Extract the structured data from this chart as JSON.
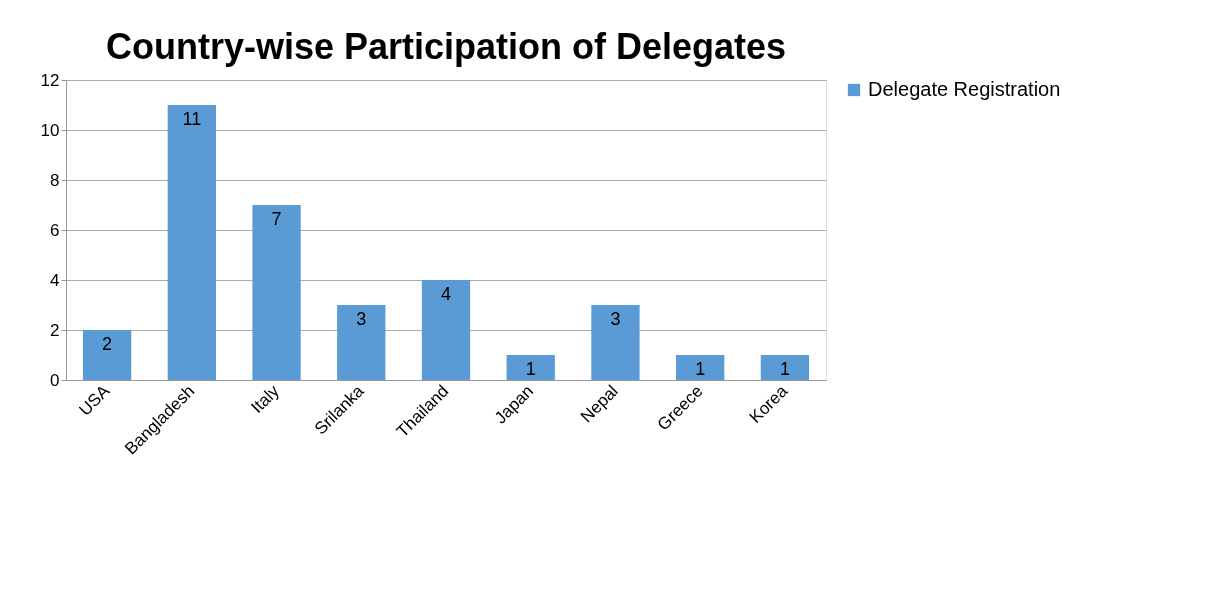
{
  "chart_data": {
    "type": "bar",
    "title": "Country-wise Participation of Delegates",
    "categories": [
      "USA",
      "Bangladesh",
      "Italy",
      "Srilanka",
      "Thailand",
      "Japan",
      "Nepal",
      "Greece",
      "Korea"
    ],
    "series": [
      {
        "name": "Delegate Registration",
        "color": "#5b9bd5",
        "values": [
          2,
          11,
          7,
          3,
          4,
          1,
          3,
          1,
          1
        ]
      }
    ],
    "ylim": [
      0,
      12
    ],
    "yticks": [
      0,
      2,
      4,
      6,
      8,
      10,
      12
    ],
    "grid": "y",
    "legend": "right",
    "data_labels": true
  }
}
